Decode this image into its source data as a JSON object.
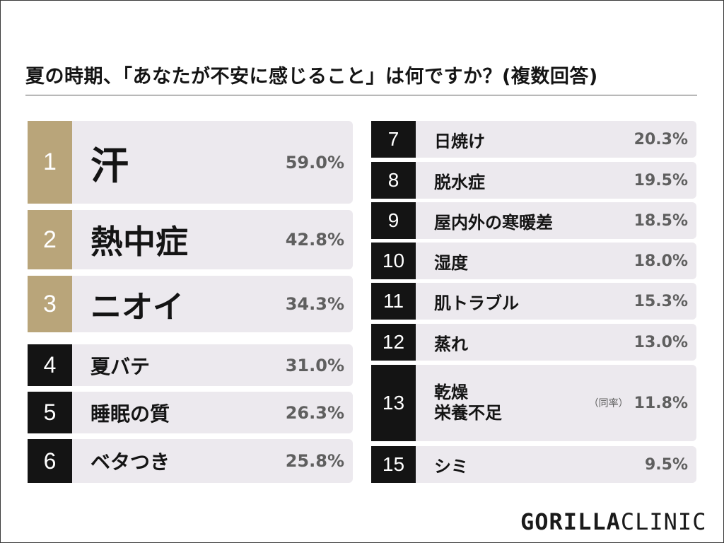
{
  "title": "夏の時期、「あなたが不安に感じること」は何ですか？(複数回答)",
  "colors": {
    "rank_top": "#b9a57a",
    "rank_other": "#141414",
    "panel": "#ece9ee",
    "value_text": "#5f5f5f"
  },
  "chart_data": {
    "type": "table",
    "title": "夏の時期、「あなたが不安に感じること」は何ですか？(複数回答)",
    "columns": [
      "rank",
      "item",
      "percent"
    ],
    "rows": [
      {
        "rank": "1",
        "item": "汗",
        "percent": 59.0,
        "value": "59.0%",
        "top": true
      },
      {
        "rank": "2",
        "item": "熱中症",
        "percent": 42.8,
        "value": "42.8%",
        "top": true
      },
      {
        "rank": "3",
        "item": "ニオイ",
        "percent": 34.3,
        "value": "34.3%",
        "top": true
      },
      {
        "rank": "4",
        "item": "夏バテ",
        "percent": 31.0,
        "value": "31.0%"
      },
      {
        "rank": "5",
        "item": "睡眠の質",
        "percent": 26.3,
        "value": "26.3%"
      },
      {
        "rank": "6",
        "item": "ベタつき",
        "percent": 25.8,
        "value": "25.8%"
      },
      {
        "rank": "7",
        "item": "日焼け",
        "percent": 20.3,
        "value": "20.3%"
      },
      {
        "rank": "8",
        "item": "脱水症",
        "percent": 19.5,
        "value": "19.5%"
      },
      {
        "rank": "9",
        "item": "屋内外の寒暖差",
        "percent": 18.5,
        "value": "18.5%"
      },
      {
        "rank": "10",
        "item": "湿度",
        "percent": 18.0,
        "value": "18.0%"
      },
      {
        "rank": "11",
        "item": "肌トラブル",
        "percent": 15.3,
        "value": "15.3%"
      },
      {
        "rank": "12",
        "item": "蒸れ",
        "percent": 13.0,
        "value": "13.0%"
      },
      {
        "rank": "13",
        "item": "乾燥",
        "item2": "栄養不足",
        "note": "（同率）",
        "percent": 11.8,
        "value": "11.8%"
      },
      {
        "rank": "15",
        "item": "シミ",
        "percent": 9.5,
        "value": "9.5%"
      }
    ]
  },
  "logo": {
    "bold": "GORILLA",
    "light": "CLINIC"
  }
}
